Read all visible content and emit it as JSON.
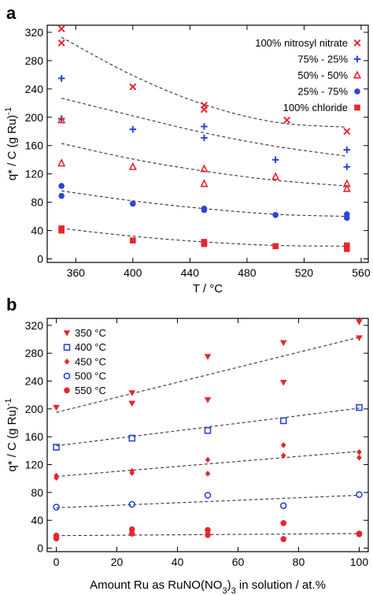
{
  "chart_data": [
    {
      "panel": "a",
      "type": "scatter",
      "xlabel": "T / °C",
      "ylabel": "q* / C (g Ru)-1",
      "xlim": [
        340,
        565
      ],
      "ylim": [
        -5,
        330
      ],
      "xticks": [
        360,
        400,
        440,
        480,
        520,
        560
      ],
      "yticks": [
        0,
        40,
        80,
        120,
        160,
        200,
        240,
        280,
        320
      ],
      "legend_position": "top-right",
      "colors": {
        "red": "#e8262b",
        "blue": "#2b46d8"
      },
      "series": [
        {
          "name": "100% nitrosyl nitrate",
          "marker": "x",
          "color": "#e8262b",
          "points": [
            [
              350,
              325
            ],
            [
              350,
              305
            ],
            [
              400,
              243
            ],
            [
              450,
              217
            ],
            [
              450,
              211
            ],
            [
              508,
              196
            ],
            [
              550,
              180
            ]
          ],
          "fit": [
            [
              350,
              313
            ],
            [
              400,
              259
            ],
            [
              450,
              218
            ],
            [
              500,
              193
            ],
            [
              550,
              186
            ]
          ]
        },
        {
          "name": "75% - 25%",
          "marker": "plus",
          "color": "#2b46d8",
          "points": [
            [
              350,
              255
            ],
            [
              350,
              198
            ],
            [
              400,
              183
            ],
            [
              450,
              187
            ],
            [
              450,
              171
            ],
            [
              500,
              140
            ],
            [
              550,
              154
            ],
            [
              550,
              130
            ]
          ],
          "fit": [
            [
              350,
              227
            ],
            [
              400,
              202
            ],
            [
              450,
              178
            ],
            [
              500,
              159
            ],
            [
              550,
              145
            ]
          ]
        },
        {
          "name": "50% - 50%",
          "marker": "triangle-open",
          "color": "#e8262b",
          "points": [
            [
              350,
              196
            ],
            [
              350,
              135
            ],
            [
              400,
              130
            ],
            [
              450,
              127
            ],
            [
              450,
              106
            ],
            [
              500,
              116
            ],
            [
              550,
              106
            ],
            [
              550,
              99
            ]
          ],
          "fit": [
            [
              350,
              163
            ],
            [
              400,
              141
            ],
            [
              450,
              124
            ],
            [
              500,
              111
            ],
            [
              550,
              103
            ]
          ]
        },
        {
          "name": "25% - 75%",
          "marker": "circle",
          "color": "#2b46d8",
          "points": [
            [
              350,
              103
            ],
            [
              350,
              89
            ],
            [
              400,
              78
            ],
            [
              450,
              71
            ],
            [
              450,
              69
            ],
            [
              500,
              62
            ],
            [
              550,
              63
            ],
            [
              550,
              58
            ]
          ],
          "fit": [
            [
              350,
              96
            ],
            [
              400,
              82
            ],
            [
              450,
              71
            ],
            [
              500,
              63
            ],
            [
              550,
              60
            ]
          ]
        },
        {
          "name": "100% chloride",
          "marker": "square",
          "color": "#e8262b",
          "points": [
            [
              350,
              43
            ],
            [
              350,
              40
            ],
            [
              400,
              26
            ],
            [
              450,
              24
            ],
            [
              450,
              21
            ],
            [
              500,
              18
            ],
            [
              550,
              19
            ],
            [
              550,
              14
            ]
          ],
          "fit": [
            [
              350,
              43
            ],
            [
              400,
              32
            ],
            [
              450,
              24
            ],
            [
              500,
              19
            ],
            [
              550,
              18
            ]
          ]
        }
      ]
    },
    {
      "panel": "b",
      "type": "scatter",
      "xlabel": "Amount Ru as RuNO(NO3)3 in solution / at.%",
      "ylabel": "q* / C (g Ru)-1",
      "xlim": [
        -3,
        103
      ],
      "ylim": [
        -5,
        330
      ],
      "xticks": [
        0,
        20,
        40,
        60,
        80,
        100
      ],
      "yticks": [
        0,
        40,
        80,
        120,
        160,
        200,
        240,
        280,
        320
      ],
      "legend_position": "top-left",
      "colors": {
        "red": "#e8262b",
        "blue": "#2b46d8"
      },
      "series": [
        {
          "name": "350 °C",
          "marker": "triangle-down",
          "color": "#e8262b",
          "points": [
            [
              0,
              202
            ],
            [
              25,
              223
            ],
            [
              25,
              208
            ],
            [
              50,
              275
            ],
            [
              50,
              213
            ],
            [
              75,
              295
            ],
            [
              75,
              238
            ],
            [
              100,
              325
            ],
            [
              100,
              302
            ]
          ],
          "fit": [
            [
              0,
              195
            ],
            [
              100,
              303
            ]
          ]
        },
        {
          "name": "400 °C",
          "marker": "square-open",
          "color": "#2b46d8",
          "points": [
            [
              0,
              145
            ],
            [
              25,
              158
            ],
            [
              50,
              169
            ],
            [
              75,
              183
            ],
            [
              100,
              202
            ]
          ],
          "fit": [
            [
              0,
              147
            ],
            [
              100,
              201
            ]
          ]
        },
        {
          "name": "450 °C",
          "marker": "diamond",
          "color": "#e8262b",
          "points": [
            [
              0,
              104
            ],
            [
              0,
              101
            ],
            [
              25,
              111
            ],
            [
              25,
              108
            ],
            [
              50,
              127
            ],
            [
              50,
              107
            ],
            [
              75,
              148
            ],
            [
              75,
              133
            ],
            [
              100,
              138
            ],
            [
              100,
              130
            ]
          ],
          "fit": [
            [
              0,
              103
            ],
            [
              100,
              139
            ]
          ]
        },
        {
          "name": "500 °C",
          "marker": "circle-open",
          "color": "#2b46d8",
          "points": [
            [
              0,
              59
            ],
            [
              25,
              63
            ],
            [
              50,
              76
            ],
            [
              75,
              61
            ],
            [
              100,
              77
            ]
          ],
          "fit": [
            [
              0,
              58
            ],
            [
              100,
              76
            ]
          ]
        },
        {
          "name": "550 °C",
          "marker": "circle",
          "color": "#e8262b",
          "points": [
            [
              0,
              18
            ],
            [
              0,
              14
            ],
            [
              25,
              27
            ],
            [
              25,
              21
            ],
            [
              50,
              26
            ],
            [
              50,
              19
            ],
            [
              75,
              36
            ],
            [
              75,
              13
            ],
            [
              100,
              21
            ],
            [
              100,
              20
            ]
          ],
          "fit": [
            [
              0,
              18
            ],
            [
              100,
              21
            ]
          ]
        }
      ]
    }
  ]
}
